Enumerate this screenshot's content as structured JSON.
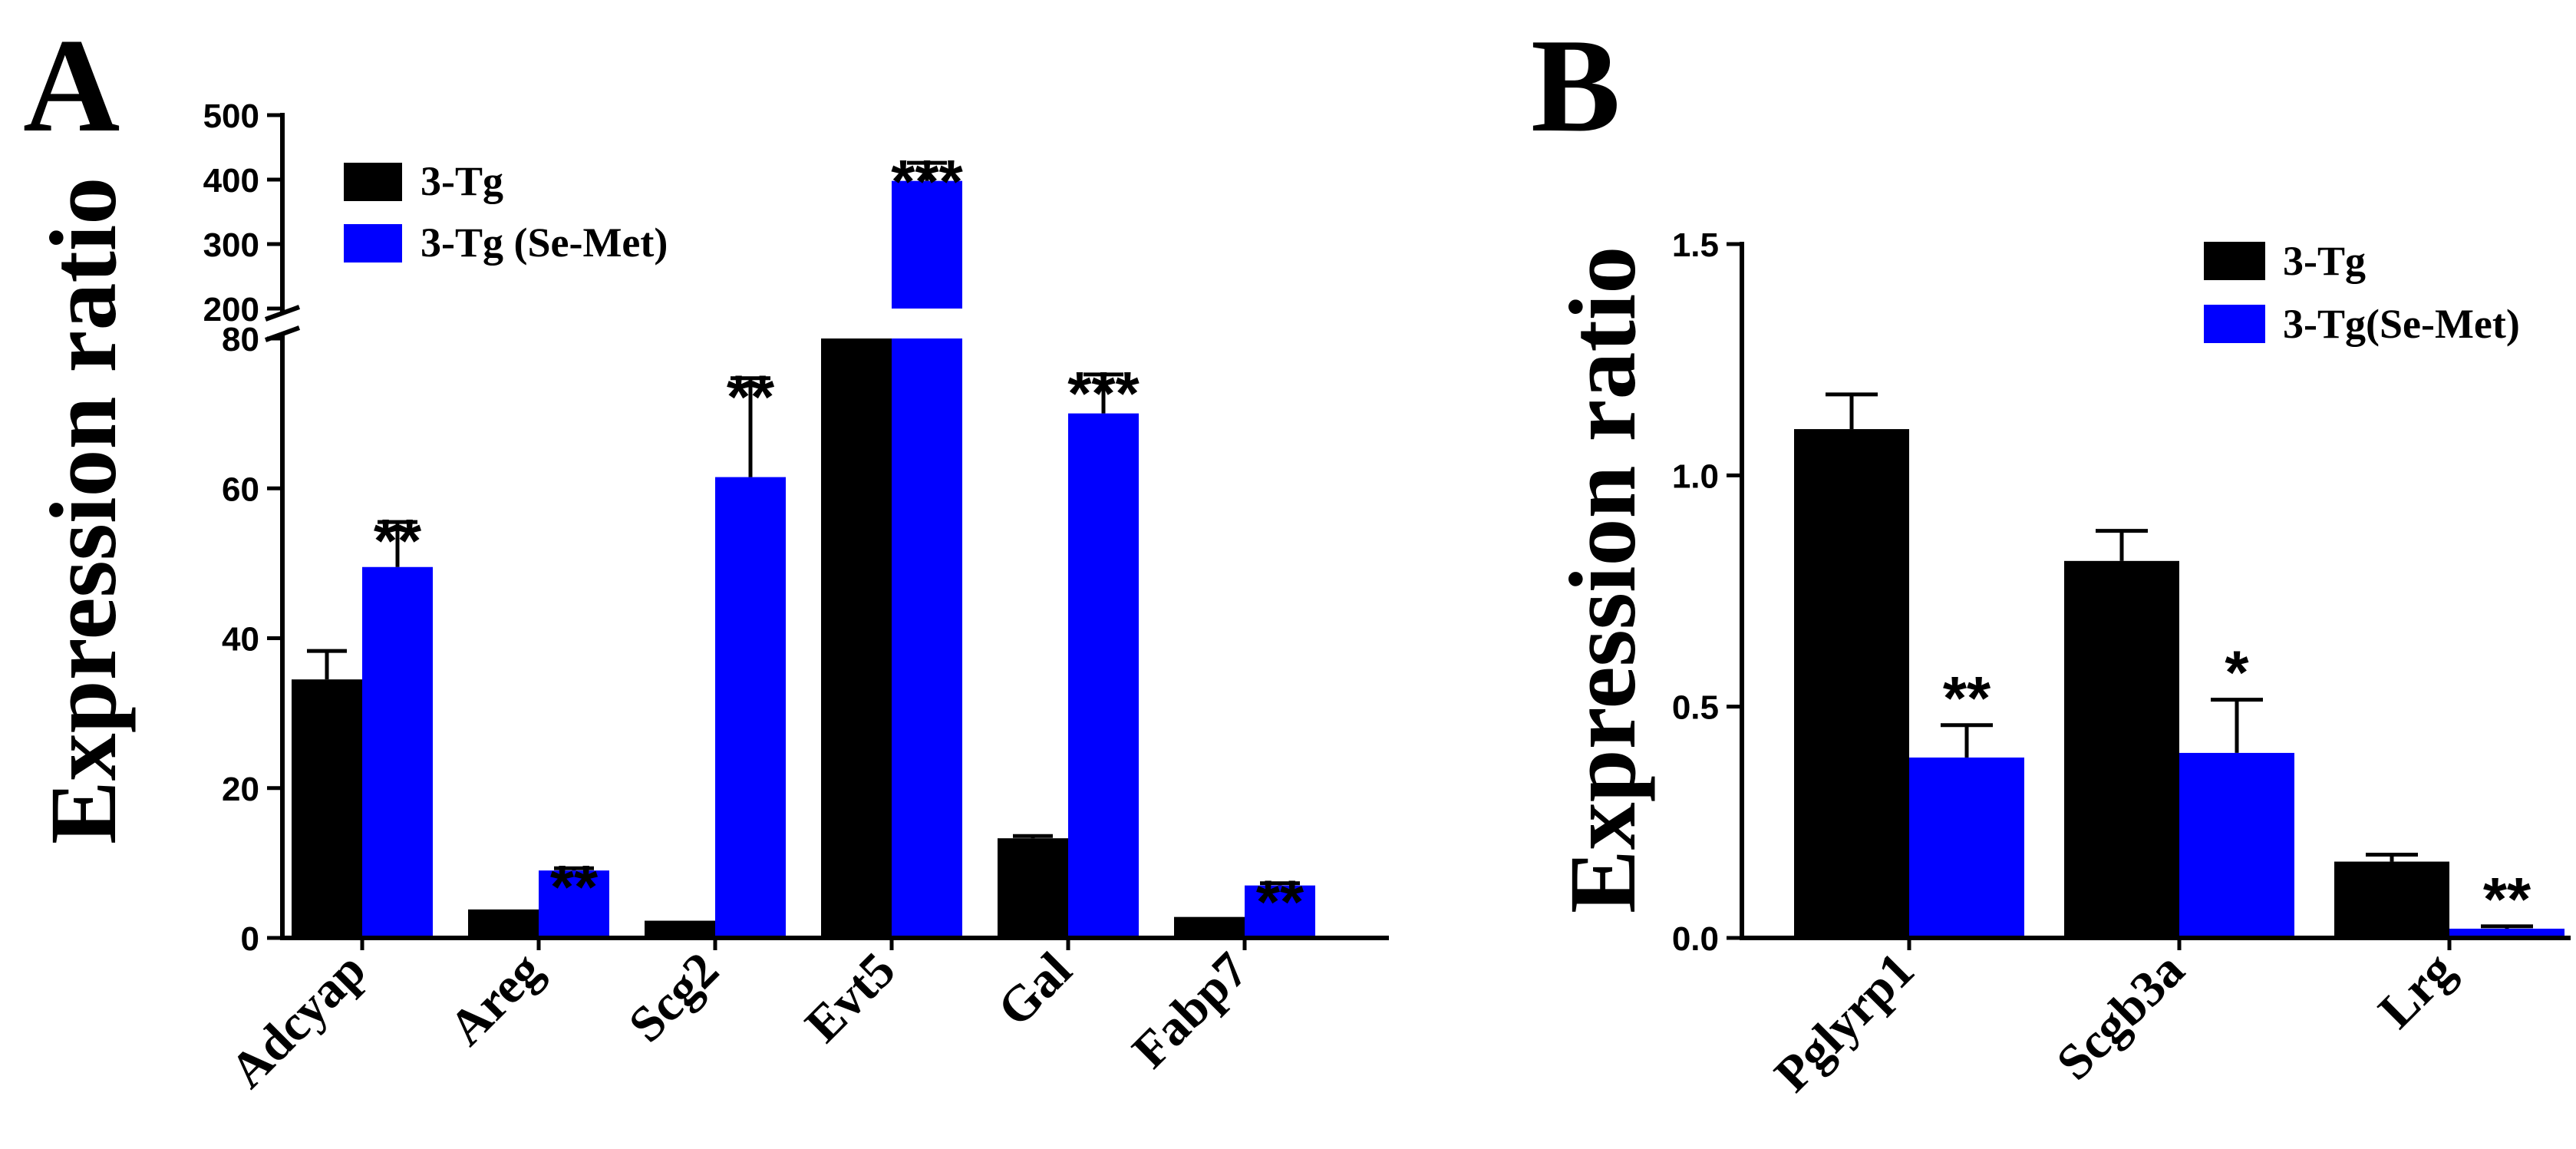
{
  "colors": {
    "control": "#000000",
    "treated": "#0000ff"
  },
  "chart_data": [
    {
      "panel": "A",
      "type": "bar",
      "ylabel": "Expression ratio",
      "categories": [
        "Adcyap",
        "Areg",
        "Scg2",
        "Evt5",
        "Gal",
        "Fabp7"
      ],
      "series": [
        {
          "name": "3-Tg",
          "values": [
            34.5,
            3.8,
            2.3,
            80,
            13.3,
            2.8
          ],
          "errors": [
            3.8,
            0,
            0,
            0,
            0.3,
            0
          ]
        },
        {
          "name": "3-Tg (Se-Met)",
          "values": [
            49.5,
            9.0,
            61.5,
            398,
            70,
            7.0
          ],
          "errors": [
            6.0,
            0.3,
            13.2,
            28,
            5.2,
            0.3
          ]
        }
      ],
      "significance": [
        "**",
        "**",
        "**",
        "***",
        "***",
        "**"
      ],
      "lower_axis": {
        "ylim": [
          0,
          80
        ],
        "ticks": [
          "0",
          "20",
          "40",
          "60",
          "80"
        ]
      },
      "upper_axis": {
        "ylim": [
          200,
          500
        ],
        "ticks": [
          "200",
          "300",
          "400",
          "500"
        ]
      },
      "broken_axis": true
    },
    {
      "panel": "B",
      "type": "bar",
      "ylabel": "Expression ratio",
      "categories": [
        "Pglyrp1",
        "Scgb3a",
        "Lrg"
      ],
      "series": [
        {
          "name": "3-Tg",
          "values": [
            1.1,
            0.815,
            0.165
          ],
          "errors": [
            0.075,
            0.065,
            0.015
          ]
        },
        {
          "name": "3-Tg(Se-Met)",
          "values": [
            0.39,
            0.4,
            0.02
          ],
          "errors": [
            0.07,
            0.115,
            0.005
          ]
        }
      ],
      "significance": [
        "**",
        "*",
        "**"
      ],
      "ylim": [
        0,
        1.5
      ],
      "ticks": [
        "0.0",
        "0.5",
        "1.0",
        "1.5"
      ]
    }
  ]
}
